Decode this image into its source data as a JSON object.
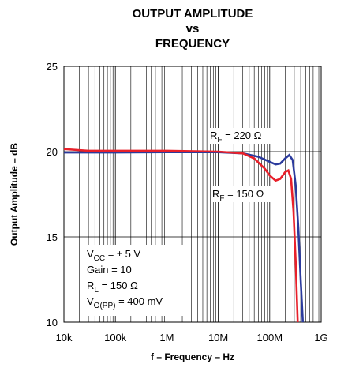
{
  "chart_data": {
    "type": "line",
    "title": [
      "OUTPUT AMPLITUDE",
      "vs",
      "FREQUENCY"
    ],
    "x_label": "f – Frequency – Hz",
    "y_label": "Output Amplitude – dB",
    "log_x": true,
    "grid": true,
    "xlim": [
      10000,
      1000000000
    ],
    "xticks": [
      {
        "value": 10000,
        "label": "10k"
      },
      {
        "value": 100000,
        "label": "100k"
      },
      {
        "value": 1000000,
        "label": "1M"
      },
      {
        "value": 10000000,
        "label": "10M"
      },
      {
        "value": 100000000,
        "label": "100M"
      },
      {
        "value": 1000000000,
        "label": "1G"
      }
    ],
    "ylim": [
      10,
      25
    ],
    "yticks": [
      10,
      15,
      20,
      25
    ],
    "series": [
      {
        "color": "#2b3a9c",
        "x": [
          10000,
          100000,
          1000000,
          10000000,
          30000000,
          60000000,
          100000000,
          130000000,
          160000000,
          200000000,
          240000000,
          280000000,
          320000000,
          360000000,
          400000000,
          440000000
        ],
        "values": [
          19.95,
          19.95,
          19.97,
          19.97,
          19.9,
          19.7,
          19.4,
          19.25,
          19.3,
          19.6,
          19.8,
          19.5,
          18,
          15.5,
          12.5,
          10
        ]
      },
      {
        "color": "#e8202a",
        "x": [
          10000,
          30000,
          100000,
          1000000,
          10000000,
          30000000,
          50000000,
          80000000,
          100000000,
          130000000,
          160000000,
          200000000,
          230000000,
          260000000,
          290000000,
          320000000,
          350000000
        ],
        "values": [
          20.15,
          20.05,
          20.05,
          20.05,
          20.0,
          19.9,
          19.6,
          19.0,
          18.6,
          18.3,
          18.4,
          18.8,
          18.9,
          18.4,
          16.5,
          13.5,
          10
        ]
      }
    ],
    "annotations": [
      [
        {
          "t": "R"
        },
        {
          "t": "F",
          "sub": true
        },
        {
          "t": " = 220 Ω"
        }
      ],
      [
        {
          "t": "R"
        },
        {
          "t": "F",
          "sub": true
        },
        {
          "t": " = 150 Ω"
        }
      ],
      [
        {
          "t": "V"
        },
        {
          "t": "CC",
          "sub": true
        },
        {
          "t": " = ± 5 V"
        }
      ],
      [
        {
          "t": "Gain = 10"
        }
      ],
      [
        {
          "t": "R"
        },
        {
          "t": "L",
          "sub": true
        },
        {
          "t": " = 150 Ω"
        }
      ],
      [
        {
          "t": "V"
        },
        {
          "t": "O(PP)",
          "sub": true
        },
        {
          "t": " = 400 mV"
        }
      ]
    ]
  }
}
